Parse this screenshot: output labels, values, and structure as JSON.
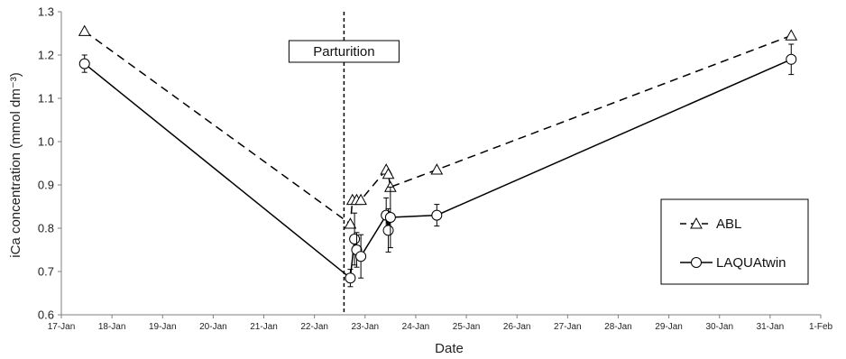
{
  "chart_data": {
    "type": "line",
    "xlabel": "Date",
    "ylabel": "iCa concentration (mmol dm⁻³)",
    "ylim": [
      0.6,
      1.3
    ],
    "yticks": [
      "0.6",
      "0.7",
      "0.8",
      "0.9",
      "1.0",
      "1.1",
      "1.2",
      "1.3"
    ],
    "xlim": [
      "2018-01-17",
      "2018-02-01"
    ],
    "xticks": [
      "17-Jan",
      "18-Jan",
      "19-Jan",
      "20-Jan",
      "21-Jan",
      "22-Jan",
      "23-Jan",
      "24-Jan",
      "25-Jan",
      "26-Jan",
      "27-Jan",
      "28-Jan",
      "29-Jan",
      "30-Jan",
      "31-Jan",
      "1-Feb"
    ],
    "annotation": {
      "label": "Parturition",
      "x": "2018-01-22 14:00"
    },
    "legend_position": "bottom-right",
    "series": [
      {
        "name": "ABL",
        "marker": "triangle",
        "line": "dashed",
        "points": [
          {
            "x": "2018-01-17 11:00",
            "y": 1.255
          },
          {
            "x": "2018-01-22 17:00",
            "y": 0.81
          },
          {
            "x": "2018-01-22 18:00",
            "y": 0.865
          },
          {
            "x": "2018-01-22 20:00",
            "y": 0.865
          },
          {
            "x": "2018-01-22 22:00",
            "y": 0.865
          },
          {
            "x": "2018-01-23 10:00",
            "y": 0.935
          },
          {
            "x": "2018-01-23 11:00",
            "y": 0.925
          },
          {
            "x": "2018-01-23 12:00",
            "y": 0.895
          },
          {
            "x": "2018-01-24 10:00",
            "y": 0.935
          },
          {
            "x": "2018-01-31 10:00",
            "y": 1.245
          }
        ]
      },
      {
        "name": "LAQUAtwin",
        "marker": "circle",
        "line": "solid",
        "points": [
          {
            "x": "2018-01-17 11:00",
            "y": 1.18,
            "err": 0.02
          },
          {
            "x": "2018-01-22 17:00",
            "y": 0.685,
            "err": 0.02
          },
          {
            "x": "2018-01-22 19:00",
            "y": 0.775,
            "err": 0.06
          },
          {
            "x": "2018-01-22 20:00",
            "y": 0.75,
            "err": 0.04
          },
          {
            "x": "2018-01-22 22:00",
            "y": 0.735,
            "err": 0.05
          },
          {
            "x": "2018-01-23 10:00",
            "y": 0.83,
            "err": 0.04
          },
          {
            "x": "2018-01-23 11:00",
            "y": 0.795,
            "err": 0.05
          },
          {
            "x": "2018-01-23 12:00",
            "y": 0.825,
            "err": 0.07
          },
          {
            "x": "2018-01-24 10:00",
            "y": 0.83,
            "err": 0.025
          },
          {
            "x": "2018-01-31 10:00",
            "y": 1.19,
            "err": 0.035
          }
        ]
      }
    ],
    "colors": {
      "line": "#000000",
      "axis": "#7f7f7f",
      "background": "#ffffff"
    }
  }
}
